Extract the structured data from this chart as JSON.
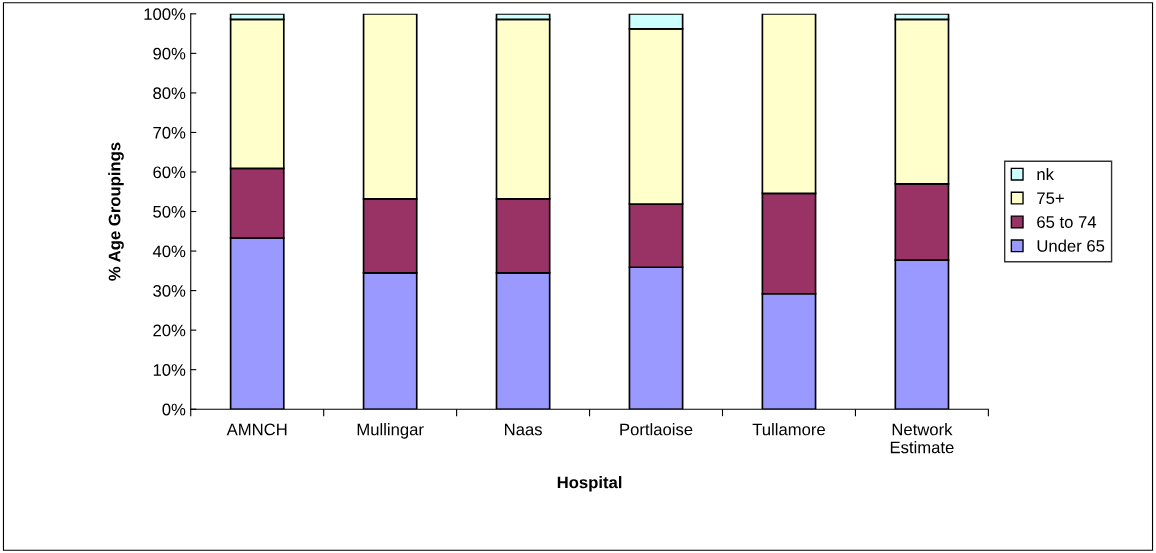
{
  "chart_data": {
    "type": "bar",
    "stacked": true,
    "xlabel": "Hospital",
    "ylabel": "% Age Groupings",
    "categories": [
      "AMNCH",
      "Mullingar",
      "Naas",
      "Portlaoise",
      "Tullamore",
      "Network\nEstimate"
    ],
    "series": [
      {
        "name": "Under 65",
        "color": "#9999ff",
        "values": [
          43.3,
          34.5,
          34.5,
          35.9,
          29.2,
          37.7
        ]
      },
      {
        "name": "65 to 74",
        "color": "#993366",
        "values": [
          17.6,
          18.7,
          18.7,
          16.0,
          25.4,
          19.3
        ]
      },
      {
        "name": "75+",
        "color": "#ffffcc",
        "values": [
          37.7,
          46.8,
          45.4,
          44.3,
          45.4,
          41.6
        ]
      },
      {
        "name": "nk",
        "color": "#ccffff",
        "values": [
          1.4,
          null,
          1.4,
          3.8,
          null,
          1.4
        ]
      }
    ],
    "ylim": [
      0,
      100
    ],
    "yticks": [
      {
        "value": 0,
        "label": "0%"
      },
      {
        "value": 10,
        "label": "10%"
      },
      {
        "value": 20,
        "label": "20%"
      },
      {
        "value": 30,
        "label": "30%"
      },
      {
        "value": 40,
        "label": "40%"
      },
      {
        "value": 50,
        "label": "50%"
      },
      {
        "value": 60,
        "label": "60%"
      },
      {
        "value": 70,
        "label": "70%"
      },
      {
        "value": 80,
        "label": "80%"
      },
      {
        "value": 90,
        "label": "90%"
      },
      {
        "value": 100,
        "label": "100%"
      }
    ],
    "legend": "right",
    "grid": false
  }
}
